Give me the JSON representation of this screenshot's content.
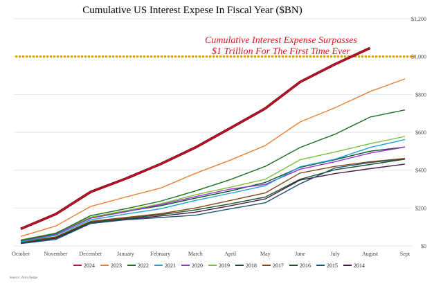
{
  "chart_data": {
    "type": "line",
    "title": "Cumulative US Interest Expese In Fiscal Year ($BN)",
    "categories": [
      "October",
      "November",
      "December",
      "January",
      "February",
      "March",
      "April",
      "May",
      "June",
      "July",
      "August",
      "Sept"
    ],
    "ylim": [
      0,
      1200
    ],
    "yticks": [
      0,
      200,
      400,
      600,
      800,
      1000,
      1200
    ],
    "ytick_labels": [
      "$0",
      "$200",
      "$400",
      "$600",
      "$800",
      "$1,000",
      "$1,200"
    ],
    "threshold": {
      "value": 1000,
      "color": "#d4a500"
    },
    "annotation": {
      "line1": "Cumulative Interest Expense Surpasses",
      "line2": "$1 Trillion For The First Time Ever"
    },
    "source": "Source: Zero Hedge",
    "legend_position": "bottom",
    "series": [
      {
        "name": "2024",
        "color": "#c8102e",
        "values": [
          90,
          168,
          285,
          355,
          432,
          520,
          622,
          726,
          866,
          960,
          1045,
          null
        ]
      },
      {
        "name": "2023",
        "color": "#ed7d31",
        "values": [
          50,
          105,
          208,
          258,
          305,
          383,
          453,
          530,
          655,
          730,
          815,
          882
        ]
      },
      {
        "name": "2022",
        "color": "#1e6b1e",
        "values": [
          30,
          66,
          160,
          196,
          236,
          290,
          350,
          420,
          520,
          590,
          680,
          718
        ]
      },
      {
        "name": "2021",
        "color": "#1e9fd6",
        "values": [
          22,
          56,
          138,
          168,
          196,
          240,
          278,
          318,
          418,
          458,
          520,
          562
        ]
      },
      {
        "name": "2020",
        "color": "#9933cc",
        "values": [
          28,
          62,
          146,
          180,
          218,
          260,
          300,
          325,
          405,
          445,
          490,
          522
        ]
      },
      {
        "name": "2019",
        "color": "#7cbf3a",
        "values": [
          32,
          68,
          152,
          186,
          222,
          270,
          310,
          352,
          455,
          496,
          540,
          578
        ]
      },
      {
        "name": "2018",
        "color": "#0b4d2a",
        "values": [
          25,
          60,
          150,
          182,
          212,
          252,
          290,
          335,
          415,
          455,
          500,
          522
        ]
      },
      {
        "name": "2017",
        "color": "#8b4513",
        "values": [
          20,
          48,
          130,
          150,
          170,
          200,
          240,
          280,
          385,
          420,
          445,
          462
        ]
      },
      {
        "name": "2016",
        "color": "#14532d",
        "values": [
          18,
          44,
          125,
          145,
          165,
          190,
          222,
          258,
          352,
          402,
          430,
          458
        ]
      },
      {
        "name": "2015",
        "color": "#1a5276",
        "values": [
          12,
          34,
          118,
          138,
          150,
          162,
          196,
          228,
          328,
          412,
          440,
          460
        ]
      },
      {
        "name": "2014",
        "color": "#4a1942",
        "values": [
          15,
          40,
          120,
          140,
          158,
          178,
          212,
          248,
          348,
          382,
          408,
          432
        ]
      }
    ]
  }
}
